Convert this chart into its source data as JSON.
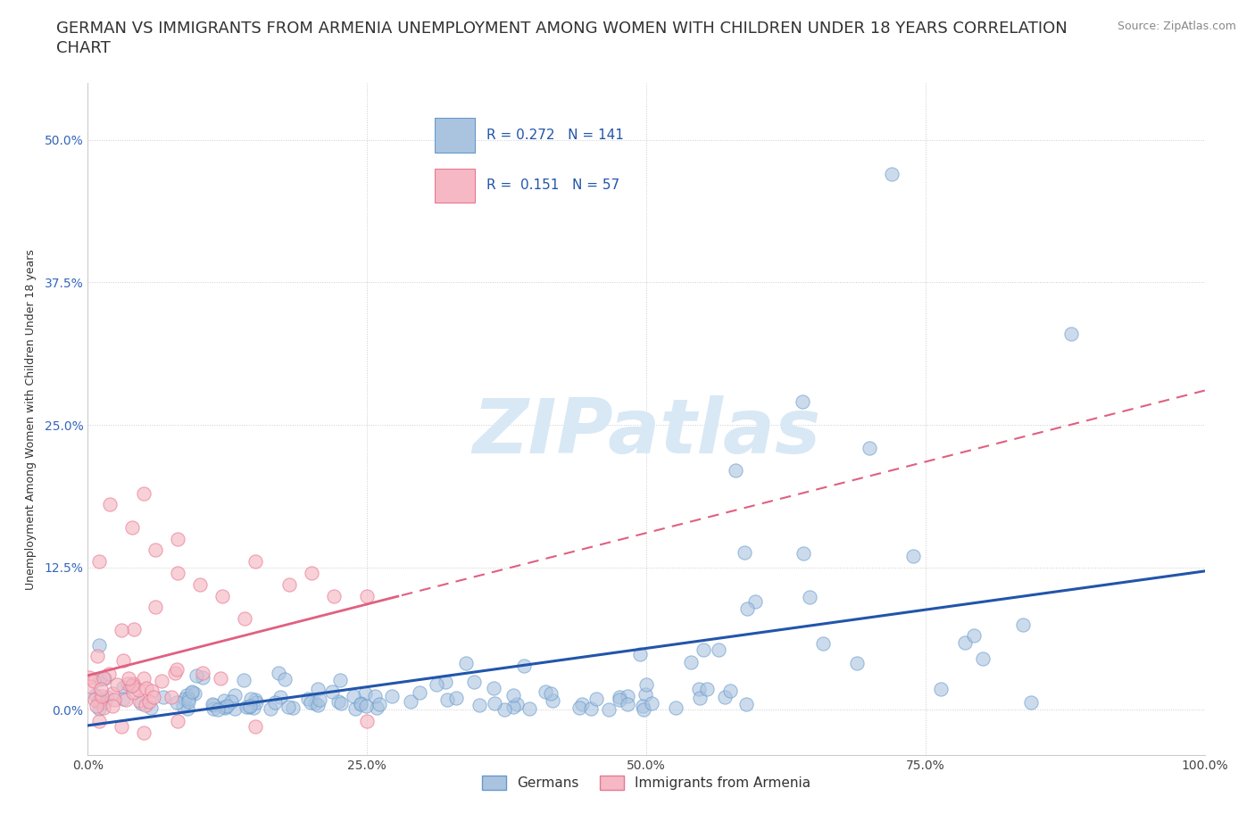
{
  "title_line1": "GERMAN VS IMMIGRANTS FROM ARMENIA UNEMPLOYMENT AMONG WOMEN WITH CHILDREN UNDER 18 YEARS CORRELATION",
  "title_line2": "CHART",
  "source_text": "Source: ZipAtlas.com",
  "ylabel": "Unemployment Among Women with Children Under 18 years",
  "xlim": [
    0.0,
    1.0
  ],
  "ylim": [
    -0.04,
    0.55
  ],
  "x_ticks": [
    0.0,
    0.25,
    0.5,
    0.75,
    1.0
  ],
  "x_tick_labels": [
    "0.0%",
    "25.0%",
    "50.0%",
    "75.0%",
    "100.0%"
  ],
  "y_ticks": [
    0.0,
    0.125,
    0.25,
    0.375,
    0.5
  ],
  "y_tick_labels": [
    "0.0%",
    "12.5%",
    "25.0%",
    "37.5%",
    "50.0%"
  ],
  "background_color": "#ffffff",
  "watermark_text": "ZIPatlas",
  "watermark_color": "#d8e8f5",
  "german_color": "#aac4e0",
  "german_edge_color": "#6699cc",
  "armenia_color": "#f5b8c4",
  "armenia_edge_color": "#e87890",
  "german_line_color": "#2255aa",
  "armenia_line_color": "#e06080",
  "R_german": 0.272,
  "N_german": 141,
  "R_armenia": 0.151,
  "N_armenia": 57,
  "legend_label_german": "Germans",
  "legend_label_armenia": "Immigrants from Armenia",
  "title_fontsize": 13,
  "axis_label_fontsize": 9,
  "tick_fontsize": 10,
  "legend_fontsize": 11
}
